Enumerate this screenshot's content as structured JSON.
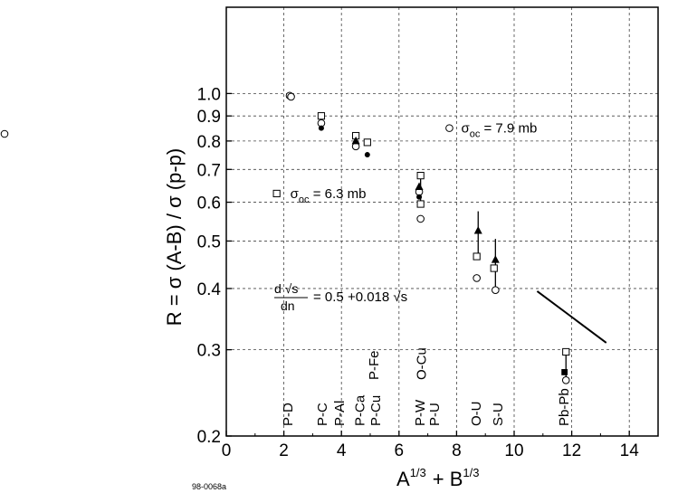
{
  "chart_data": {
    "type": "scatter",
    "title": "",
    "xlabel": "A^1/3 + B^1/3",
    "ylabel": "R = σ (A-B) / σ (p-p)",
    "xlim": [
      0,
      15
    ],
    "ylim": [
      0.2,
      1.5
    ],
    "yscale": "log",
    "grid": true,
    "x_ticks": [
      0,
      2,
      4,
      6,
      8,
      10,
      12,
      14
    ],
    "y_ticks": [
      0.2,
      0.3,
      0.4,
      0.5,
      0.6,
      0.7,
      0.8,
      0.9,
      1.0
    ],
    "y_tick_labels": [
      "0.2",
      "0.3",
      "0.4",
      "0.5",
      "0.6",
      "0.7",
      "0.8",
      "0.9",
      "1.0"
    ],
    "series": [
      {
        "marker": "open-circle",
        "points": [
          [
            2.2,
            0.99
          ],
          [
            2.25,
            0.985
          ],
          [
            3.3,
            0.87
          ],
          [
            4.5,
            0.78
          ],
          [
            6.7,
            0.63
          ],
          [
            6.75,
            0.555
          ],
          [
            8.7,
            0.42
          ],
          [
            9.35,
            0.397
          ],
          [
            11.8,
            0.26
          ]
        ]
      },
      {
        "marker": "open-square",
        "points": [
          [
            3.3,
            0.9
          ],
          [
            4.5,
            0.82
          ],
          [
            4.9,
            0.795
          ],
          [
            6.75,
            0.68
          ],
          [
            6.75,
            0.595
          ],
          [
            8.7,
            0.465
          ],
          [
            9.3,
            0.44
          ],
          [
            11.8,
            0.297
          ]
        ]
      },
      {
        "marker": "filled-circle",
        "points": [
          [
            3.3,
            0.85
          ],
          [
            4.9,
            0.75
          ],
          [
            6.7,
            0.615
          ]
        ]
      },
      {
        "marker": "filled-triangle",
        "points": [
          [
            4.5,
            0.8
          ],
          [
            6.7,
            0.645
          ],
          [
            8.75,
            0.525
          ],
          [
            9.35,
            0.458
          ]
        ]
      },
      {
        "marker": "filled-square",
        "points": [
          [
            11.75,
            0.27
          ]
        ]
      }
    ],
    "error_bars": [
      {
        "x": 6.75,
        "low": 0.6,
        "high": 0.68
      },
      {
        "x": 8.75,
        "low": 0.465,
        "high": 0.575
      },
      {
        "x": 9.35,
        "low": 0.4,
        "high": 0.505
      },
      {
        "x": 11.8,
        "low": 0.26,
        "high": 0.297
      }
    ],
    "line": {
      "from": [
        10.8,
        0.395
      ],
      "to": [
        13.2,
        0.31
      ]
    },
    "reaction_labels": [
      {
        "x": 2.1,
        "text": "P-D"
      },
      {
        "x": 3.3,
        "text": "P-C"
      },
      {
        "x": 3.9,
        "text": "P-Al"
      },
      {
        "x": 4.6,
        "text": "P-Ca"
      },
      {
        "x": 5.15,
        "text": "P-Cu"
      },
      {
        "x": 6.7,
        "text": "P-W"
      },
      {
        "x": 7.2,
        "text": "P-U"
      },
      {
        "x": 8.65,
        "text": "O-U"
      },
      {
        "x": 9.4,
        "text": "S-U"
      },
      {
        "x": 11.7,
        "text": "Pb-Pb"
      }
    ],
    "raised_labels": [
      {
        "x": 5.1,
        "text": "P-Fe"
      },
      {
        "x": 6.75,
        "text": "O-Cu"
      }
    ],
    "annotations": {
      "sigma_square": {
        "symbol": "σ",
        "sub": "oc",
        "value": "= 6.3 mb",
        "x": 1.75,
        "y": 0.625
      },
      "sigma_circle": {
        "symbol": "σ",
        "sub": "oc",
        "value": "= 7.9 mb",
        "x": 7.75,
        "y": 0.85
      },
      "formula": {
        "lhs_num": "d √s",
        "lhs_den": "dn",
        "rhs": "= 0.5 +0.018 √s"
      }
    },
    "figure_id": "98-0068a"
  },
  "legend_marker": "open-circle"
}
